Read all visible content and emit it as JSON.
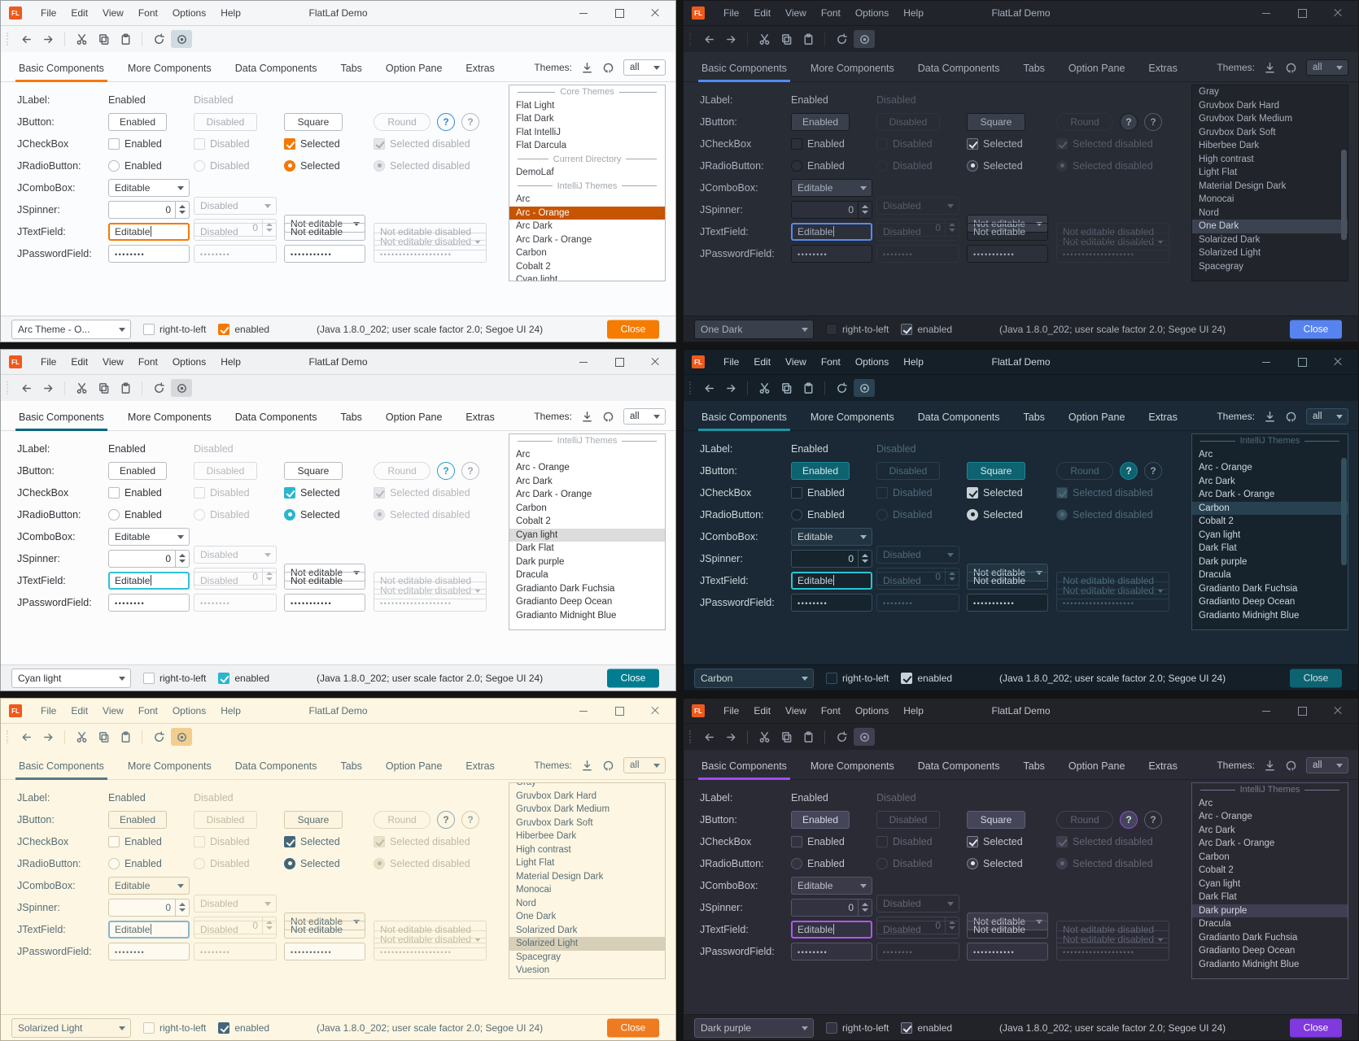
{
  "shared": {
    "logo": "FL",
    "title": "FlatLaf Demo",
    "menus": [
      "File",
      "Edit",
      "View",
      "Font",
      "Options",
      "Help"
    ],
    "toolbar_icons": [
      "back",
      "forward",
      "cut",
      "copy",
      "paste",
      "refresh",
      "inspect"
    ],
    "tabs": [
      "Basic Components",
      "More Components",
      "Data Components",
      "Tabs",
      "Option Pane",
      "Extras"
    ],
    "themes_label": "Themes:",
    "themes_icons": [
      "download",
      "github"
    ],
    "filter_value": "all",
    "rows": [
      {
        "label": "JLabel:",
        "type": "label",
        "cells": [
          "Enabled",
          "Disabled"
        ]
      },
      {
        "label": "JButton:",
        "type": "button",
        "cells": [
          "Enabled",
          "Disabled",
          "Square",
          "Round"
        ],
        "help": [
          "?",
          "?"
        ]
      },
      {
        "label": "JCheckBox",
        "type": "checkbox",
        "cells": [
          "Enabled",
          "Disabled",
          "Selected",
          "Selected disabled"
        ]
      },
      {
        "label": "JRadioButton:",
        "type": "radio",
        "cells": [
          "Enabled",
          "Disabled",
          "Selected",
          "Selected disabled"
        ]
      },
      {
        "label": "JComboBox:",
        "type": "combobox",
        "cells": [
          "Editable",
          "Disabled",
          "Not editable",
          "Not editable disabled"
        ]
      },
      {
        "label": "JSpinner:",
        "type": "spinner",
        "cells": [
          "0",
          "0"
        ]
      },
      {
        "label": "JTextField:",
        "type": "textfield",
        "cells": [
          "Editable",
          "Disabled",
          "Not editable",
          "Not editable disabled"
        ]
      },
      {
        "label": "JPasswordField:",
        "type": "password",
        "cells": [
          "••••••••",
          "••••••••",
          "•••••••••••",
          "•••••••••••••••••••"
        ]
      }
    ],
    "rtl_label": "right-to-left",
    "enabled_label": "enabled",
    "status": "(Java 1.8.0_202;  user scale factor 2.0; Segoe UI 24)",
    "close_label": "Close"
  },
  "panels": [
    {
      "id": "arc-orange",
      "theme_name": "Arc - Orange",
      "status_combo": "Arc Theme - O...",
      "list": [
        {
          "sep": "Core Themes"
        },
        {
          "item": "Flat Light"
        },
        {
          "item": "Flat Dark"
        },
        {
          "item": "Flat IntelliJ"
        },
        {
          "item": "Flat Darcula"
        },
        {
          "sep": "Current Directory"
        },
        {
          "item": "DemoLaf"
        },
        {
          "sep": "IntelliJ Themes"
        },
        {
          "item": "Arc"
        },
        {
          "item": "Arc - Orange",
          "selected": true
        },
        {
          "item": "Arc Dark"
        },
        {
          "item": "Arc Dark - Orange"
        },
        {
          "item": "Carbon"
        },
        {
          "item": "Cobalt 2"
        },
        {
          "item": "Cyan light"
        }
      ],
      "colors": {
        "border": "#9aa0a6",
        "titlebar": "#f5f6f7",
        "content": "#fbfcfd",
        "listbg": "#ffffff",
        "text": "#3c4046",
        "muted": "#a7adb5",
        "icon": "#5a5f66",
        "winBtn": "#53575e",
        "ctrlBorder": "#b6bcc3",
        "dimBorder": "#d7dade",
        "inputBg": "#ffffff",
        "comboBg": "#ffffff",
        "btnBg": "#ffffff",
        "btnBorder": "#b6bcc3",
        "btnText": "#3c4046",
        "underline": "#f57900",
        "focus": "#f57900",
        "checkBg": "#f57900",
        "checkBorder": "#f57900",
        "checkMark": "#ffffff",
        "dimFill": "#e4e6e9",
        "selBg": "#c65400",
        "selText": "#ffffff",
        "sepText": "#a2a8ae",
        "closeBg": "#f57c00",
        "closeText": "#ffffff",
        "eyeBg": "#cfdbe1",
        "barBorder": "#d4d7da",
        "tabLine": "#d9dcdf",
        "help1Bg": "transparent",
        "help1Border": "#2f86d6",
        "help1Text": "#2f86d6",
        "help2Border": "#b3b9c0",
        "help2Text": "#9aa0a8"
      }
    },
    {
      "id": "one-dark",
      "theme_name": "One Dark",
      "status_combo": "One Dark",
      "list": [
        {
          "item": "Gray"
        },
        {
          "item": "Gruvbox Dark Hard"
        },
        {
          "item": "Gruvbox Dark Medium"
        },
        {
          "item": "Gruvbox Dark Soft"
        },
        {
          "item": "Hiberbee Dark"
        },
        {
          "item": "High contrast"
        },
        {
          "item": "Light Flat"
        },
        {
          "item": "Material Design Dark"
        },
        {
          "item": "Monocai"
        },
        {
          "item": "Nord"
        },
        {
          "item": "One Dark",
          "selected": true
        },
        {
          "item": "Solarized Dark"
        },
        {
          "item": "Solarized Light"
        },
        {
          "item": "Spacegray"
        }
      ],
      "scrollbar": {
        "top_pct": 33,
        "height_pct": 46
      },
      "colors": {
        "border": "#15171b",
        "titlebar": "#21252b",
        "content": "#282c34",
        "listbg": "#21252b",
        "text": "#a8b0bd",
        "muted": "#565e6b",
        "icon": "#9aa3b2",
        "winBtn": "#8a919c",
        "ctrlBorder": "#181a1f",
        "dimBorder": "#2f343d",
        "inputBg": "#2b303a",
        "comboBg": "#3a404b",
        "btnBg": "#3a404b",
        "btnBorder": "#181a1f",
        "btnText": "#a8b0bd",
        "underline": "#568af2",
        "focus": "#568af2",
        "checkBg": "#353b45",
        "checkBorder": "#6d7687",
        "checkMark": "#dfe5ee",
        "dimFill": "#31363f",
        "selBg": "#3b4250",
        "selText": "#cfd6e0",
        "sepText": "#565e6b",
        "closeBg": "#5683f0",
        "closeText": "#ffffff",
        "eyeBg": "#3b414d",
        "barBorder": "#181a1f",
        "tabLine": "#1c2026",
        "help1Bg": "#3a404b",
        "help1Border": "#181a1f",
        "help1Text": "#a8b0bd",
        "help2Border": "#555d6b",
        "help2Text": "#8b93a1",
        "thumb": "#4a5260"
      }
    },
    {
      "id": "cyan-light",
      "theme_name": "Cyan light",
      "status_combo": "Cyan light",
      "list": [
        {
          "sep": "IntelliJ Themes"
        },
        {
          "item": "Arc"
        },
        {
          "item": "Arc - Orange"
        },
        {
          "item": "Arc Dark"
        },
        {
          "item": "Arc Dark - Orange"
        },
        {
          "item": "Carbon"
        },
        {
          "item": "Cobalt 2"
        },
        {
          "item": "Cyan light",
          "selected": true
        },
        {
          "item": "Dark Flat"
        },
        {
          "item": "Dark purple"
        },
        {
          "item": "Dracula"
        },
        {
          "item": "Gradianto Dark Fuchsia"
        },
        {
          "item": "Gradianto Deep Ocean"
        },
        {
          "item": "Gradianto Midnight Blue"
        }
      ],
      "colors": {
        "border": "#9aa0a6",
        "titlebar": "#f0f1f2",
        "content": "#fcfcfc",
        "listbg": "#ffffff",
        "text": "#303338",
        "muted": "#b4b8bd",
        "icon": "#5a5f66",
        "winBtn": "#53575e",
        "ctrlBorder": "#b9bdc2",
        "dimBorder": "#d9dbde",
        "inputBg": "#ffffff",
        "comboBg": "#ffffff",
        "btnBg": "#ffffff",
        "btnBorder": "#b9bdc2",
        "btnText": "#303338",
        "underline": "#07677e",
        "focus": "#30c1d8",
        "checkBg": "#29b6ce",
        "checkBorder": "#29b6ce",
        "checkMark": "#ffffff",
        "dimFill": "#e4e6e9",
        "selBg": "#dcdcdc",
        "selText": "#303338",
        "sepText": "#a8adb3",
        "closeBg": "#007d90",
        "closeText": "#ffffff",
        "eyeBg": "#d6d8da",
        "barBorder": "#d6d8da",
        "tabLine": "#dcdee0",
        "help1Bg": "transparent",
        "help1Border": "#2d9ac9",
        "help1Text": "#2d9ac9",
        "help2Border": "#b9bdc2",
        "help2Text": "#a0a5ab"
      }
    },
    {
      "id": "carbon",
      "theme_name": "Carbon",
      "status_combo": "Carbon",
      "list": [
        {
          "sep": "IntelliJ Themes"
        },
        {
          "item": "Arc"
        },
        {
          "item": "Arc - Orange"
        },
        {
          "item": "Arc Dark"
        },
        {
          "item": "Arc Dark - Orange"
        },
        {
          "item": "Carbon",
          "selected": true
        },
        {
          "item": "Cobalt 2"
        },
        {
          "item": "Cyan light"
        },
        {
          "item": "Dark Flat"
        },
        {
          "item": "Dark purple"
        },
        {
          "item": "Dracula"
        },
        {
          "item": "Gradianto Dark Fuchsia"
        },
        {
          "item": "Gradianto Deep Ocean"
        },
        {
          "item": "Gradianto Midnight Blue"
        }
      ],
      "scrollbar": {
        "top_pct": 12,
        "height_pct": 55
      },
      "colors": {
        "border": "#0c1217",
        "titlebar": "#151f27",
        "content": "#1a2935",
        "listbg": "#17232c",
        "text": "#cbd6dc",
        "muted": "#4d6b7a",
        "icon": "#9fb4bf",
        "winBtn": "#8fa3ad",
        "ctrlBorder": "#365062",
        "dimBorder": "#2a3f4d",
        "inputBg": "#16242e",
        "comboBg": "#223441",
        "btnBg": "#0e6371",
        "btnBorder": "#1d8795",
        "btnText": "#d8e6ea",
        "underline": "#1d96a3",
        "focus": "#2cc3d5",
        "checkBg": "#c8d2d8",
        "checkBorder": "#c8d2d8",
        "checkMark": "#17232c",
        "dimFill": "#3a5260",
        "selBg": "#274150",
        "selText": "#d5e0e6",
        "sepText": "#4d6b7a",
        "closeBg": "#0e6371",
        "closeText": "#d8e6ea",
        "eyeBg": "#2b4252",
        "barBorder": "#0d161d",
        "tabLine": "#10202a",
        "help1Bg": "#0e6371",
        "help1Border": "#1d8795",
        "help1Text": "#d8e6ea",
        "help2Border": "#365062",
        "help2Text": "#8fa3ad",
        "thumb": "#33505e"
      }
    },
    {
      "id": "solarized-light",
      "theme_name": "Solarized Light",
      "status_combo": "Solarized Light",
      "clip_first": true,
      "list": [
        {
          "item": "Gray"
        },
        {
          "item": "Gruvbox Dark Hard"
        },
        {
          "item": "Gruvbox Dark Medium"
        },
        {
          "item": "Gruvbox Dark Soft"
        },
        {
          "item": "Hiberbee Dark"
        },
        {
          "item": "High contrast"
        },
        {
          "item": "Light Flat"
        },
        {
          "item": "Material Design Dark"
        },
        {
          "item": "Monocai"
        },
        {
          "item": "Nord"
        },
        {
          "item": "One Dark"
        },
        {
          "item": "Solarized Dark"
        },
        {
          "item": "Solarized Light",
          "selected": true
        },
        {
          "item": "Spacegray"
        },
        {
          "item": "Vuesion"
        }
      ],
      "colors": {
        "border": "#b5ad94",
        "titlebar": "#fdf6e3",
        "content": "#fdf6e3",
        "listbg": "#fdf6e3",
        "text": "#586e75",
        "muted": "#c0b9a2",
        "icon": "#657b83",
        "winBtn": "#657b83",
        "ctrlBorder": "#d2c9ad",
        "dimBorder": "#e3dcc3",
        "inputBg": "#fefaf0",
        "comboBg": "#fcf4df",
        "btnBg": "#fcf4df",
        "btnBorder": "#d2c9ad",
        "btnText": "#586e75",
        "underline": "#5a7886",
        "focus": "#86b5d1",
        "checkBg": "#42667c",
        "checkBorder": "#42667c",
        "checkMark": "#fdf6e3",
        "dimFill": "#e9e1c8",
        "selBg": "#d7cfb8",
        "selText": "#586e75",
        "sepText": "#b3ab90",
        "closeBg": "#ee7b20",
        "closeText": "#ffffff",
        "eyeBg": "#f1ce8f",
        "barBorder": "#e0d8bf",
        "tabLine": "#e6deca",
        "help1Bg": "transparent",
        "help1Border": "#8ca8b5",
        "help1Text": "#657b83",
        "help2Border": "#d2c9ad",
        "help2Text": "#93a1a1"
      }
    },
    {
      "id": "dark-purple",
      "theme_name": "Dark purple",
      "status_combo": "Dark purple",
      "list": [
        {
          "sep": "IntelliJ Themes"
        },
        {
          "item": "Arc"
        },
        {
          "item": "Arc - Orange"
        },
        {
          "item": "Arc Dark"
        },
        {
          "item": "Arc Dark - Orange"
        },
        {
          "item": "Carbon"
        },
        {
          "item": "Cobalt 2"
        },
        {
          "item": "Cyan light"
        },
        {
          "item": "Dark Flat"
        },
        {
          "item": "Dark purple",
          "selected": true
        },
        {
          "item": "Dracula"
        },
        {
          "item": "Gradianto Dark Fuchsia"
        },
        {
          "item": "Gradianto Deep Ocean"
        },
        {
          "item": "Gradianto Midnight Blue"
        }
      ],
      "scrollbar": {
        "top_pct": 10,
        "height_pct": 58
      },
      "colors": {
        "border": "#121216",
        "titlebar": "#222229",
        "content": "#2b2b35",
        "listbg": "#292932",
        "text": "#c0c2cd",
        "muted": "#636575",
        "icon": "#9c9eae",
        "winBtn": "#8f91a0",
        "ctrlBorder": "#55566a",
        "dimBorder": "#414253",
        "inputBg": "#323240",
        "comboBg": "#3a3a48",
        "btnBg": "#45455a",
        "btnBorder": "#5c5d73",
        "btnText": "#d6d7e2",
        "underline": "#a04df0",
        "focus": "#b455f5",
        "checkBg": "#3a3a48",
        "checkBorder": "#7e8096",
        "checkMark": "#e5e6ef",
        "dimFill": "#3d3d4c",
        "selBg": "#3f3f53",
        "selText": "#d6d7e2",
        "sepText": "#767890",
        "closeBg": "#8038df",
        "closeText": "#ffffff",
        "eyeBg": "#404052",
        "barBorder": "#1b1b22",
        "tabLine": "#20202a",
        "help1Bg": "#45455a",
        "help1Border": "#8a4fd8",
        "help1Text": "#d6d7e2",
        "help2Border": "#5c5d73",
        "help2Text": "#9c9eae"
      }
    }
  ]
}
